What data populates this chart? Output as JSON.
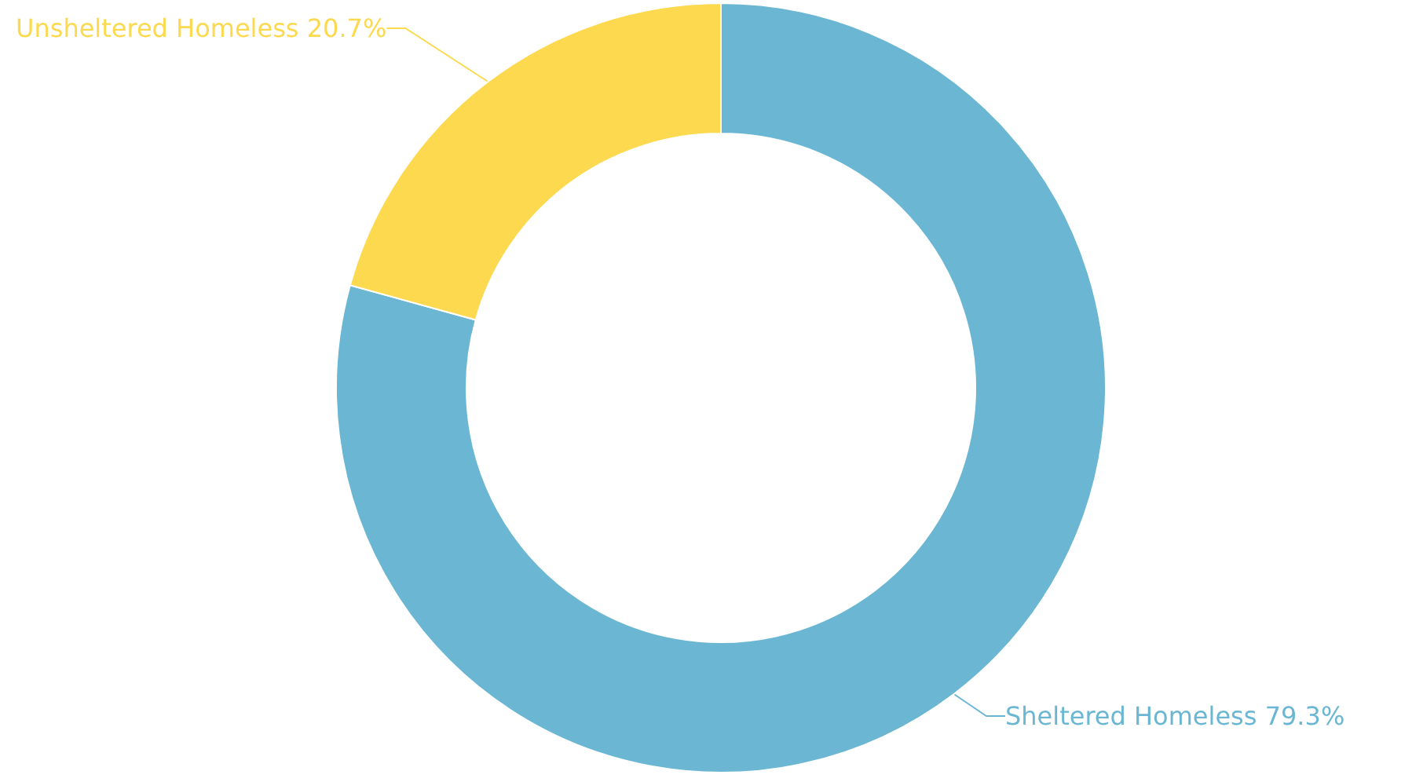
{
  "chart_data": {
    "type": "donut",
    "categories": [
      "Sheltered Homeless",
      "Unsheltered Homeless"
    ],
    "values": [
      79.3,
      20.7
    ],
    "value_labels": [
      "79.3%",
      "20.7%"
    ],
    "colors": [
      "#6bb7d3",
      "#fcd94f"
    ],
    "legend": false
  }
}
